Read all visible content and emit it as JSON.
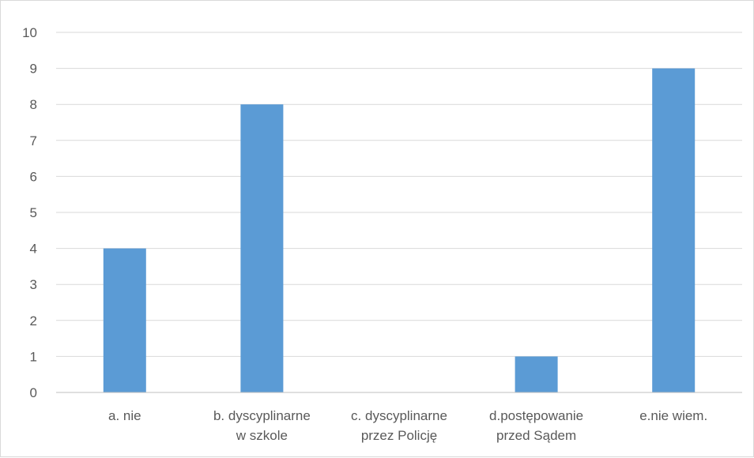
{
  "chart_data": {
    "type": "bar",
    "title": "",
    "xlabel": "",
    "ylabel": "",
    "categories": [
      [
        "a. nie"
      ],
      [
        "b. dyscyplinarne",
        "w szkole"
      ],
      [
        "c. dyscyplinarne",
        "przez Policję"
      ],
      [
        "d.postępowanie",
        "przed Sądem"
      ],
      [
        "e.nie wiem."
      ]
    ],
    "values": [
      4,
      8,
      0,
      1,
      9
    ],
    "ylim": [
      0,
      10
    ],
    "yticks": [
      "0",
      "1",
      "2",
      "3",
      "4",
      "5",
      "6",
      "7",
      "8",
      "9",
      "10"
    ],
    "grid": true,
    "legend": "none",
    "colors": {
      "bar": "#5b9bd5",
      "grid": "#d9d9d9",
      "axis": "#bfbfbf",
      "text": "#595959"
    }
  }
}
